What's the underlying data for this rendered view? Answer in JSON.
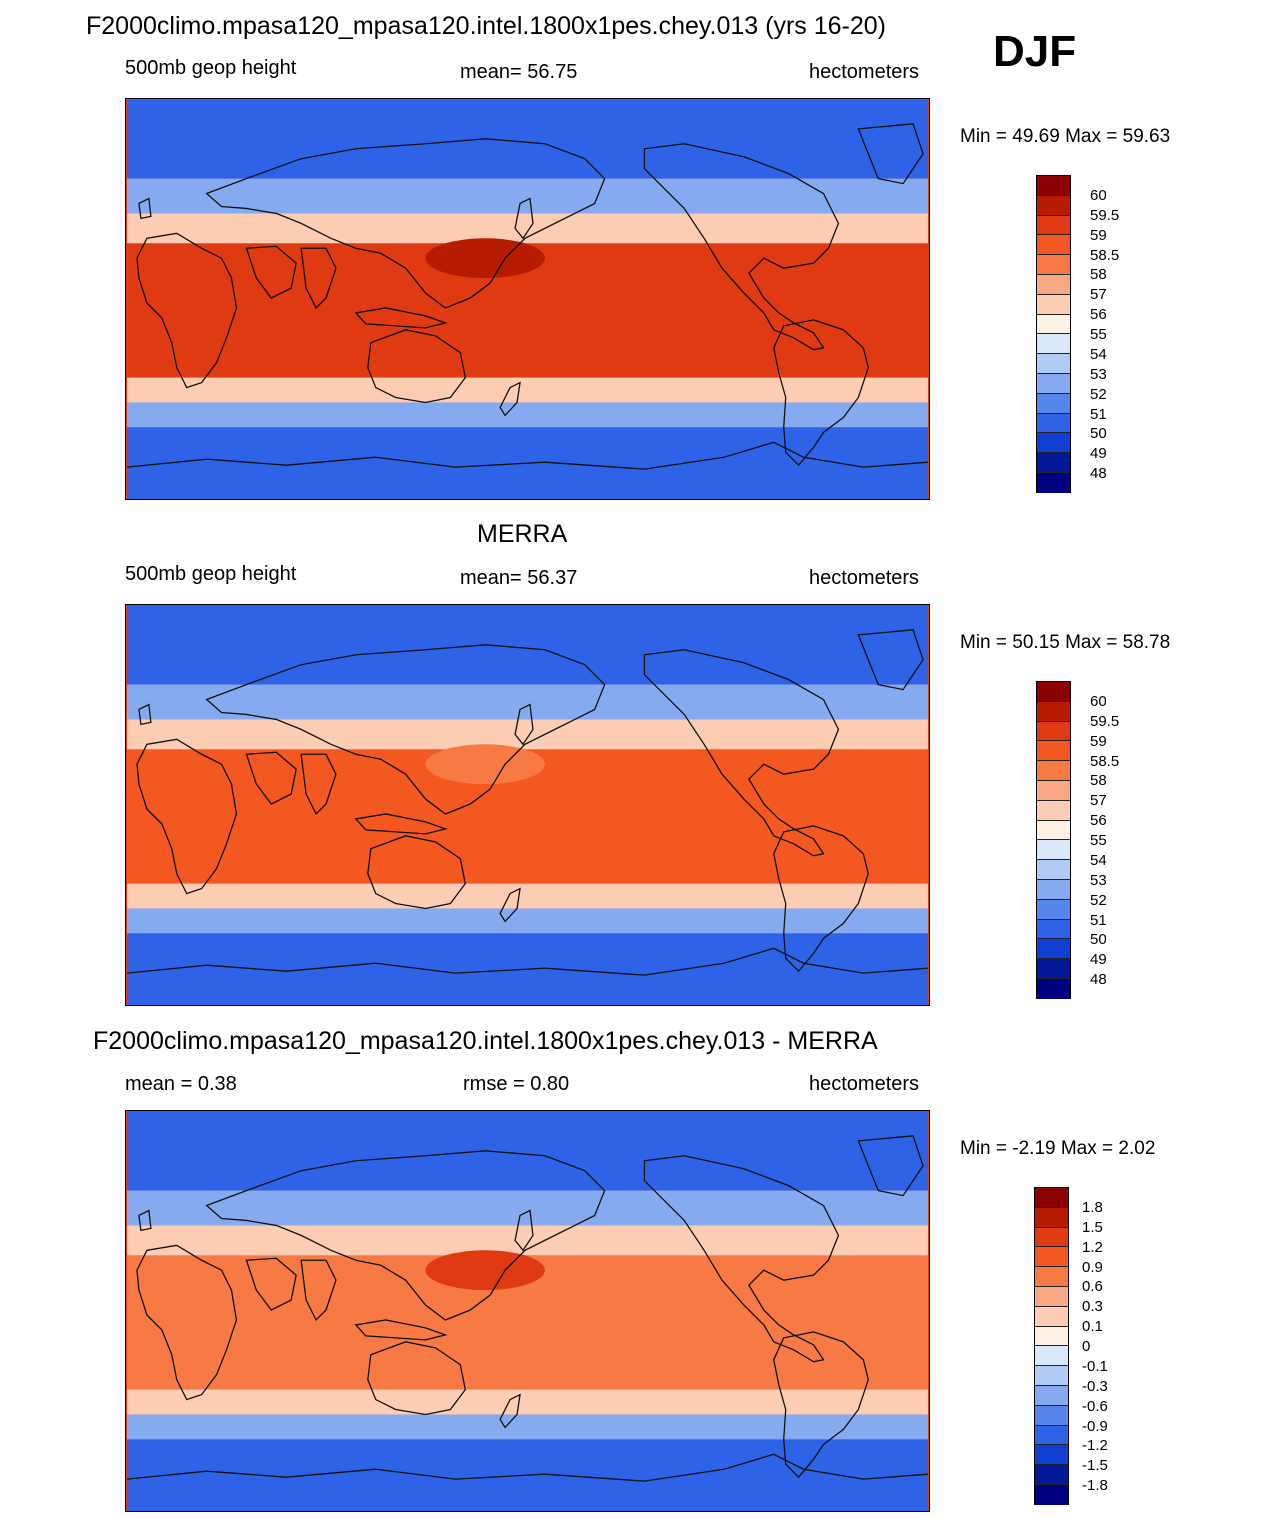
{
  "season": "DJF",
  "panels": [
    {
      "title": "F2000climo.mpasa120_mpasa120.intel.1800x1pes.chey.013 (yrs 16-20)",
      "left": "500mb geop height",
      "center": "mean=  56.75",
      "right": "hectometers",
      "minmax": "Min =  49.69 Max =  59.63",
      "levels": [
        "60",
        "59.5",
        "59",
        "58.5",
        "58",
        "57",
        "56",
        "55",
        "54",
        "53",
        "52",
        "51",
        "50",
        "49",
        "48"
      ],
      "colors": [
        "#8b0000",
        "#b81c00",
        "#e03a12",
        "#f2581f",
        "#f77a45",
        "#fba884",
        "#fccdb3",
        "#fdf0e4",
        "#dbe8fa",
        "#b2cbf4",
        "#86aaf0",
        "#5686ec",
        "#2e63e8",
        "#0f3fd3",
        "#04199a",
        "#000080"
      ],
      "field_colors": {
        "polar": "#2e63e8",
        "mid": "#86aaf0",
        "band": "#fccdb3",
        "trop": "#e03a12",
        "trop_max": "#b81c00"
      }
    },
    {
      "title": "MERRA",
      "left": "500mb geop height",
      "center": "mean=  56.37",
      "right": "hectometers",
      "minmax": "Min =  50.15 Max =  58.78",
      "levels": [
        "60",
        "59.5",
        "59",
        "58.5",
        "58",
        "57",
        "56",
        "55",
        "54",
        "53",
        "52",
        "51",
        "50",
        "49",
        "48"
      ],
      "colors": [
        "#8b0000",
        "#b81c00",
        "#e03a12",
        "#f2581f",
        "#f77a45",
        "#fba884",
        "#fccdb3",
        "#fdf0e4",
        "#dbe8fa",
        "#b2cbf4",
        "#86aaf0",
        "#5686ec",
        "#2e63e8",
        "#0f3fd3",
        "#04199a",
        "#000080"
      ],
      "field_colors": {
        "polar": "#2e63e8",
        "mid": "#86aaf0",
        "band": "#fccdb3",
        "trop": "#f2581f",
        "trop_max": "#f77a45"
      }
    },
    {
      "title": "F2000climo.mpasa120_mpasa120.intel.1800x1pes.chey.013 - MERRA",
      "left": "mean =   0.38",
      "center": "rmse =   0.80",
      "right": "hectometers",
      "minmax": "Min =  -2.19 Max =   2.02",
      "levels": [
        "1.8",
        "1.5",
        "1.2",
        "0.9",
        "0.6",
        "0.3",
        "0.1",
        "0",
        "-0.1",
        "-0.3",
        "-0.6",
        "-0.9",
        "-1.2",
        "-1.5",
        "-1.8"
      ],
      "colors": [
        "#8b0000",
        "#b81c00",
        "#e03a12",
        "#f2581f",
        "#f77a45",
        "#fba884",
        "#fccdb3",
        "#fdf0e4",
        "#dbe8fa",
        "#b2cbf4",
        "#86aaf0",
        "#5686ec",
        "#2e63e8",
        "#0f3fd3",
        "#04199a",
        "#000080"
      ],
      "field_colors": {
        "polar": "#2e63e8",
        "mid": "#86aaf0",
        "band": "#fccdb3",
        "trop": "#f77a45",
        "trop_max": "#e03a12"
      }
    }
  ]
}
